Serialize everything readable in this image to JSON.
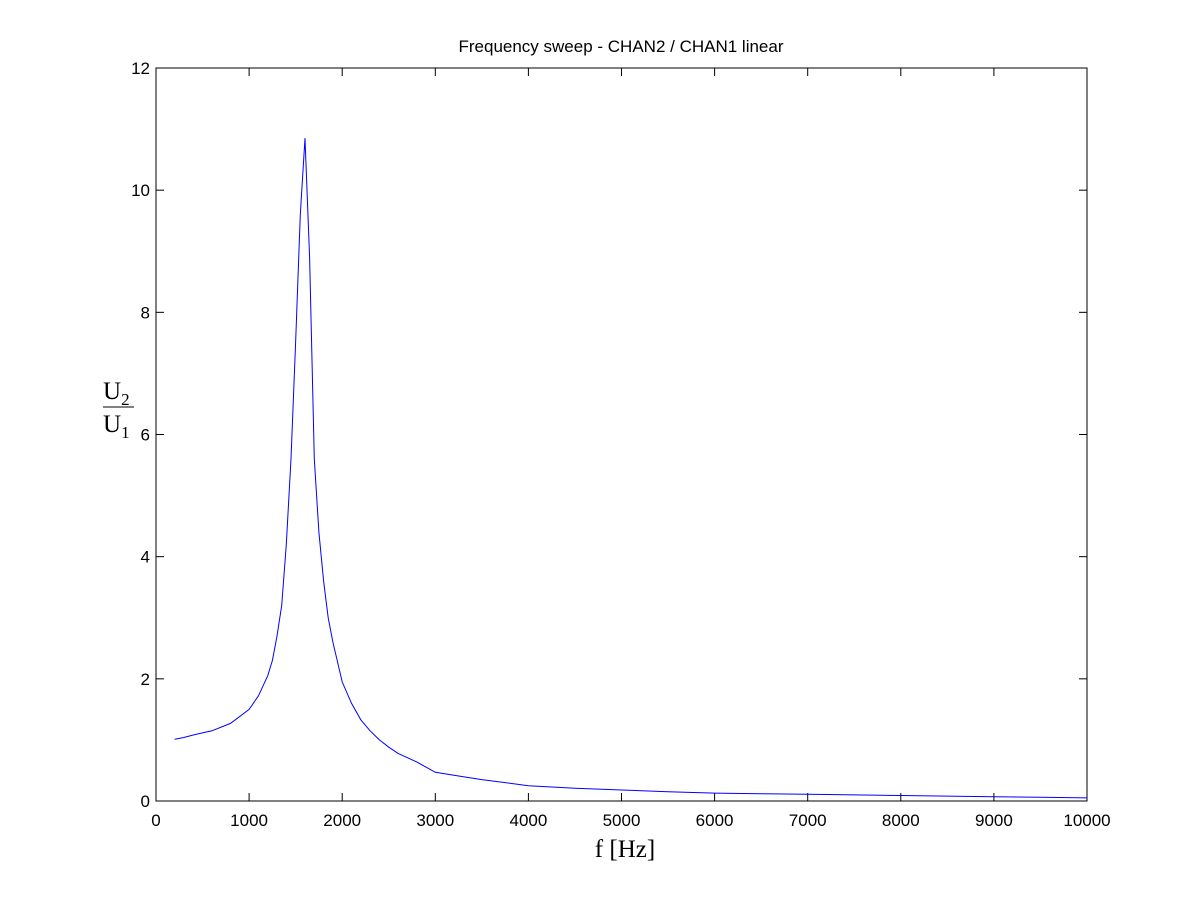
{
  "chart_data": {
    "type": "line",
    "title": "Frequency sweep - CHAN2 / CHAN1 linear",
    "xlabel": "f [Hz]",
    "ylabel": {
      "numerator": {
        "base": "U",
        "sub": "2"
      },
      "denominator": {
        "base": "U",
        "sub": "1"
      }
    },
    "xlim": [
      0,
      10000
    ],
    "ylim": [
      0,
      12
    ],
    "xticks": [
      "0",
      "1000",
      "2000",
      "3000",
      "4000",
      "5000",
      "6000",
      "7000",
      "8000",
      "9000",
      "10000"
    ],
    "yticks": [
      "0",
      "2",
      "4",
      "6",
      "8",
      "10",
      "12"
    ],
    "grid": false,
    "line_color": "#0000ff",
    "series": [
      {
        "x": [
          200,
          300,
          400,
          600,
          800,
          1000,
          1100,
          1200,
          1250,
          1300,
          1350,
          1400,
          1450,
          1500,
          1550,
          1600,
          1650,
          1700,
          1750,
          1800,
          1850,
          1900,
          2000,
          2100,
          2200,
          2300,
          2400,
          2500,
          2600,
          2800,
          3000,
          3200,
          3500,
          4000,
          4500,
          5000,
          5500,
          6000,
          6500,
          7000,
          7500,
          8000,
          8500,
          9000,
          9500,
          10000
        ],
        "y": [
          1.01,
          1.04,
          1.08,
          1.15,
          1.27,
          1.5,
          1.72,
          2.05,
          2.3,
          2.7,
          3.2,
          4.2,
          5.6,
          7.5,
          9.6,
          10.85,
          8.9,
          5.6,
          4.4,
          3.6,
          3.0,
          2.6,
          1.95,
          1.6,
          1.33,
          1.15,
          1.0,
          0.88,
          0.78,
          0.64,
          0.47,
          0.42,
          0.35,
          0.25,
          0.21,
          0.18,
          0.15,
          0.13,
          0.12,
          0.11,
          0.1,
          0.09,
          0.08,
          0.07,
          0.06,
          0.05
        ]
      }
    ]
  }
}
